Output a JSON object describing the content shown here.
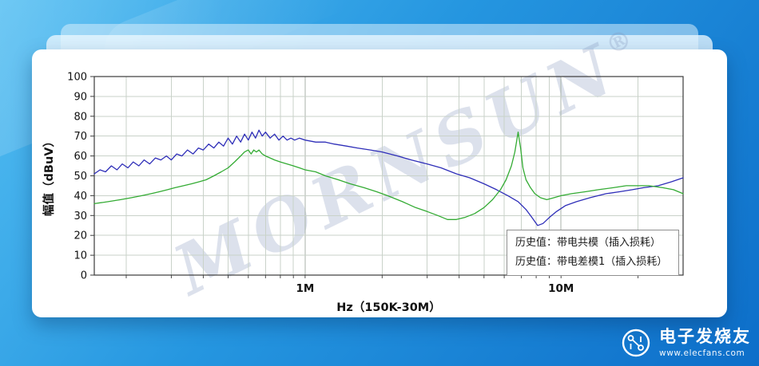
{
  "page": {
    "watermark": "MORNSUN",
    "watermark_reg": "®"
  },
  "chart_data": {
    "type": "line",
    "title": "",
    "xlabel": "Hz（150K-30M）",
    "ylabel": "幅值（dBuV）",
    "x_scale": "log",
    "x_range_hz": [
      150000,
      30000000
    ],
    "ylim": [
      0,
      100
    ],
    "y_ticks": [
      0,
      10,
      20,
      30,
      40,
      50,
      60,
      70,
      80,
      90,
      100
    ],
    "x_tick_labels": [
      {
        "hz": 1000000,
        "label": "1M"
      },
      {
        "hz": 10000000,
        "label": "10M"
      }
    ],
    "grid": true,
    "legend_position": "bottom-right",
    "points_unit": "kHz",
    "series": [
      {
        "name": "历史值：带电共模（插入损耗）",
        "color": "#2e2eb8",
        "points": [
          [
            150,
            51
          ],
          [
            158,
            53
          ],
          [
            166,
            52
          ],
          [
            175,
            55
          ],
          [
            184,
            53
          ],
          [
            193,
            56
          ],
          [
            203,
            54
          ],
          [
            213,
            57
          ],
          [
            224,
            55
          ],
          [
            235,
            58
          ],
          [
            247,
            56
          ],
          [
            260,
            59
          ],
          [
            273,
            58
          ],
          [
            287,
            60
          ],
          [
            300,
            58
          ],
          [
            315,
            61
          ],
          [
            330,
            60
          ],
          [
            347,
            63
          ],
          [
            365,
            61
          ],
          [
            383,
            64
          ],
          [
            400,
            63
          ],
          [
            420,
            66
          ],
          [
            440,
            64
          ],
          [
            460,
            67
          ],
          [
            480,
            65
          ],
          [
            500,
            69
          ],
          [
            520,
            66
          ],
          [
            540,
            70
          ],
          [
            560,
            67
          ],
          [
            580,
            71
          ],
          [
            600,
            68
          ],
          [
            620,
            72
          ],
          [
            640,
            69
          ],
          [
            660,
            73
          ],
          [
            680,
            70
          ],
          [
            700,
            72
          ],
          [
            730,
            69
          ],
          [
            760,
            71
          ],
          [
            790,
            68
          ],
          [
            820,
            70
          ],
          [
            850,
            68
          ],
          [
            880,
            69
          ],
          [
            910,
            68
          ],
          [
            950,
            69
          ],
          [
            1000,
            68
          ],
          [
            1100,
            67
          ],
          [
            1200,
            67
          ],
          [
            1300,
            66
          ],
          [
            1450,
            65
          ],
          [
            1600,
            64
          ],
          [
            1800,
            63
          ],
          [
            2000,
            62
          ],
          [
            2300,
            60
          ],
          [
            2600,
            58
          ],
          [
            3000,
            56
          ],
          [
            3400,
            54
          ],
          [
            3900,
            51
          ],
          [
            4400,
            49
          ],
          [
            5000,
            46
          ],
          [
            5600,
            43
          ],
          [
            6200,
            40
          ],
          [
            6800,
            37
          ],
          [
            7300,
            33
          ],
          [
            7700,
            29
          ],
          [
            8100,
            25
          ],
          [
            8500,
            26
          ],
          [
            9000,
            29
          ],
          [
            9600,
            32
          ],
          [
            10400,
            35
          ],
          [
            11500,
            37
          ],
          [
            13000,
            39
          ],
          [
            15000,
            41
          ],
          [
            17000,
            42
          ],
          [
            19000,
            43
          ],
          [
            21000,
            44
          ],
          [
            24000,
            45
          ],
          [
            27000,
            47
          ],
          [
            30000,
            49
          ]
        ]
      },
      {
        "name": "历史值：带电差模1（插入损耗）",
        "color": "#33ab33",
        "points": [
          [
            150,
            36
          ],
          [
            170,
            37
          ],
          [
            190,
            38
          ],
          [
            210,
            39
          ],
          [
            230,
            40
          ],
          [
            250,
            41
          ],
          [
            270,
            42
          ],
          [
            290,
            43
          ],
          [
            310,
            44
          ],
          [
            335,
            45
          ],
          [
            360,
            46
          ],
          [
            385,
            47
          ],
          [
            410,
            48
          ],
          [
            440,
            50
          ],
          [
            470,
            52
          ],
          [
            500,
            54
          ],
          [
            530,
            57
          ],
          [
            560,
            60
          ],
          [
            580,
            62
          ],
          [
            600,
            63
          ],
          [
            615,
            61
          ],
          [
            630,
            63
          ],
          [
            645,
            62
          ],
          [
            660,
            63
          ],
          [
            680,
            61
          ],
          [
            700,
            60
          ],
          [
            730,
            59
          ],
          [
            760,
            58
          ],
          [
            800,
            57
          ],
          [
            850,
            56
          ],
          [
            900,
            55
          ],
          [
            950,
            54
          ],
          [
            1000,
            53
          ],
          [
            1100,
            52
          ],
          [
            1200,
            50
          ],
          [
            1350,
            48
          ],
          [
            1500,
            46
          ],
          [
            1700,
            44
          ],
          [
            1900,
            42
          ],
          [
            2100,
            40
          ],
          [
            2400,
            37
          ],
          [
            2700,
            34
          ],
          [
            3000,
            32
          ],
          [
            3300,
            30
          ],
          [
            3600,
            28
          ],
          [
            3900,
            28
          ],
          [
            4200,
            29
          ],
          [
            4600,
            31
          ],
          [
            5000,
            34
          ],
          [
            5400,
            38
          ],
          [
            5800,
            43
          ],
          [
            6100,
            48
          ],
          [
            6400,
            55
          ],
          [
            6600,
            62
          ],
          [
            6800,
            72
          ],
          [
            6950,
            64
          ],
          [
            7100,
            54
          ],
          [
            7300,
            48
          ],
          [
            7600,
            44
          ],
          [
            7900,
            41
          ],
          [
            8300,
            39
          ],
          [
            8800,
            38
          ],
          [
            9400,
            39
          ],
          [
            10000,
            40
          ],
          [
            11000,
            41
          ],
          [
            12500,
            42
          ],
          [
            14000,
            43
          ],
          [
            16000,
            44
          ],
          [
            18000,
            45
          ],
          [
            20000,
            45
          ],
          [
            22000,
            45
          ],
          [
            25000,
            44
          ],
          [
            27500,
            43
          ],
          [
            30000,
            41
          ]
        ]
      }
    ]
  },
  "footer_logo": {
    "name": "电子发烧友",
    "url": "www.elecfans.com"
  }
}
